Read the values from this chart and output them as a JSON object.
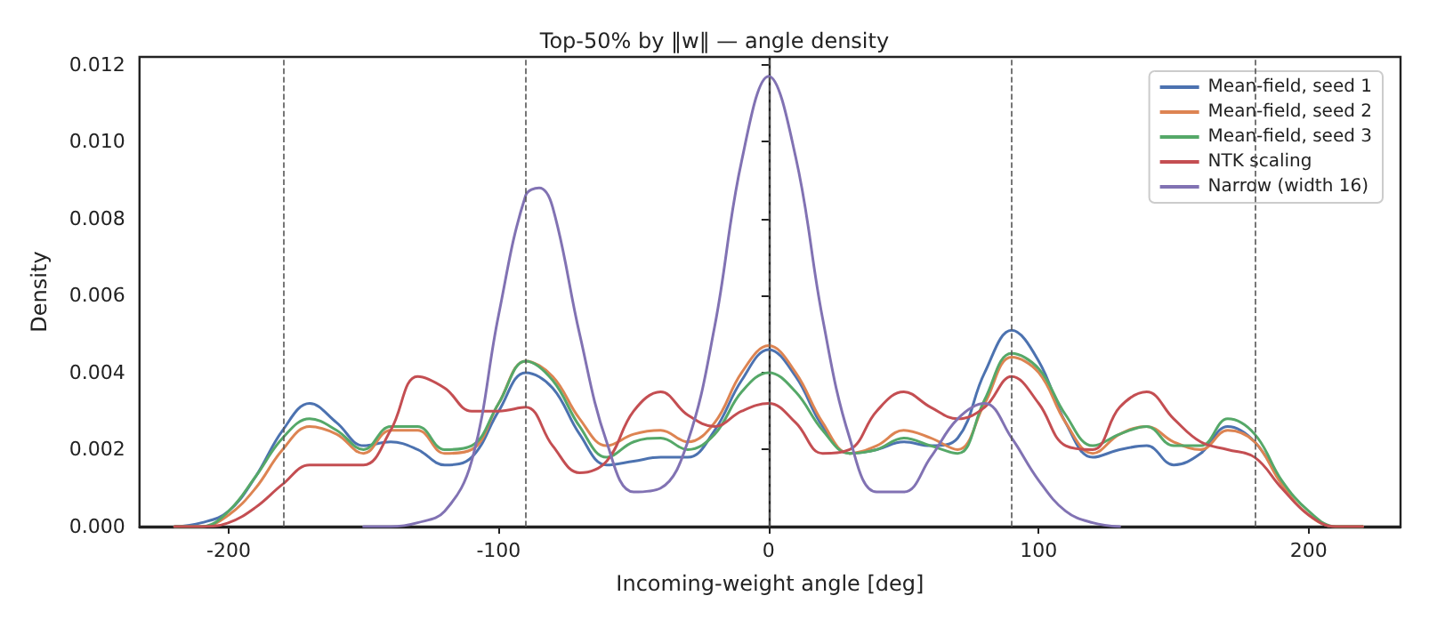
{
  "chart_data": {
    "type": "line",
    "title": "Top-50% by ‖w‖ — angle density",
    "xlabel": "Incoming-weight angle [deg]",
    "ylabel": "Density",
    "x": [
      -220,
      -210,
      -200,
      -190,
      -180,
      -170,
      -160,
      -150,
      -140,
      -130,
      -120,
      -110,
      -100,
      -90,
      -80,
      -70,
      -60,
      -50,
      -40,
      -30,
      -20,
      -10,
      0,
      10,
      20,
      30,
      40,
      50,
      60,
      70,
      80,
      90,
      100,
      110,
      120,
      130,
      140,
      150,
      160,
      170,
      180,
      190,
      200,
      210,
      220
    ],
    "series": [
      {
        "name": "Mean-field, seed 1",
        "color": "#4c72b0",
        "values": [
          0,
          0.0001,
          0.0004,
          0.0013,
          0.0025,
          0.0032,
          0.0027,
          0.0021,
          0.0022,
          0.002,
          0.0016,
          0.0018,
          0.003,
          0.004,
          0.0036,
          0.0024,
          0.0016,
          0.0017,
          0.0018,
          0.0018,
          0.0025,
          0.0038,
          0.0046,
          0.0039,
          0.0026,
          0.0019,
          0.002,
          0.0022,
          0.0021,
          0.0023,
          0.004,
          0.0051,
          0.0043,
          0.0027,
          0.0018,
          0.002,
          0.0021,
          0.0016,
          0.0019,
          0.0026,
          0.0022,
          0.0011,
          null,
          null,
          null
        ]
      },
      {
        "name": "Mean-field, seed 2",
        "color": "#dd8452",
        "values": [
          0,
          0,
          0.0003,
          0.001,
          0.002,
          0.0026,
          0.0024,
          0.0019,
          0.0025,
          0.0025,
          0.0019,
          0.002,
          0.0032,
          0.0043,
          0.0039,
          0.0028,
          0.0021,
          0.0024,
          0.0025,
          0.0022,
          0.0027,
          0.004,
          0.0047,
          0.004,
          0.0027,
          0.0019,
          0.0021,
          0.0025,
          0.0023,
          0.002,
          0.0032,
          0.0044,
          0.004,
          0.0027,
          0.0019,
          0.0024,
          0.0026,
          0.0022,
          0.002,
          0.0025,
          0.0022,
          0.0011,
          0.0003,
          0,
          0
        ]
      },
      {
        "name": "Mean-field, seed 3",
        "color": "#55a868",
        "values": [
          0,
          0,
          0.0004,
          0.0013,
          0.0023,
          0.0028,
          0.0025,
          0.002,
          0.0026,
          0.0026,
          0.002,
          0.0021,
          0.0032,
          0.0043,
          0.0038,
          0.0026,
          0.0018,
          0.0022,
          0.0023,
          0.002,
          0.0024,
          0.0035,
          0.004,
          0.0035,
          0.0025,
          0.0019,
          0.002,
          0.0023,
          0.0021,
          0.0019,
          0.0033,
          0.0045,
          0.0041,
          0.0029,
          0.0021,
          0.0024,
          0.0026,
          0.0021,
          0.0021,
          0.0028,
          0.0024,
          0.0012,
          0.0004,
          0,
          0
        ]
      },
      {
        "name": "NTK scaling",
        "color": "#c44e52",
        "values": [
          0,
          0,
          0.0001,
          0.0005,
          0.0011,
          0.0016,
          0.0016,
          0.0016,
          0.0025,
          0.0039,
          0.0036,
          0.003,
          0.003,
          0.0031,
          0.0021,
          0.0014,
          0.0017,
          0.003,
          0.0035,
          0.0029,
          0.0026,
          0.003,
          0.0032,
          0.0027,
          0.0019,
          0.002,
          0.003,
          0.0035,
          0.0031,
          0.0028,
          0.0031,
          0.0039,
          0.0032,
          0.0021,
          0.002,
          0.0031,
          0.0035,
          0.0028,
          0.0022,
          0.002,
          0.0018,
          0.001,
          0.0003,
          0,
          0
        ]
      },
      {
        "name": "Narrow (width 16)",
        "color": "#8172b3",
        "x": [
          -150,
          -140,
          -130,
          -120,
          -110,
          -100,
          -90,
          -85,
          -80,
          -70,
          -60,
          -50,
          -40,
          -30,
          -20,
          -10,
          0,
          10,
          20,
          30,
          40,
          50,
          60,
          70,
          80,
          90,
          100,
          110,
          120,
          130
        ],
        "values": [
          0,
          0,
          0.0001,
          0.0004,
          0.0017,
          0.0055,
          0.0086,
          0.0088,
          0.0083,
          0.005,
          0.0022,
          0.0009,
          0.001,
          0.0022,
          0.0052,
          0.0095,
          0.0117,
          0.0096,
          0.0054,
          0.0023,
          0.0009,
          0.0009,
          0.0018,
          0.0028,
          0.0032,
          0.0023,
          0.0012,
          0.0004,
          0.0001,
          0
        ]
      }
    ],
    "xlim": [
      -233,
      234
    ],
    "ylim": [
      0,
      0.0122
    ],
    "xticks": [
      -200,
      -100,
      0,
      100,
      200
    ],
    "yticks": [
      {
        "value": 0,
        "label": "0.000"
      },
      {
        "value": 0.002,
        "label": "0.002"
      },
      {
        "value": 0.004,
        "label": "0.004"
      },
      {
        "value": 0.006,
        "label": "0.006"
      },
      {
        "value": 0.008,
        "label": "0.008"
      },
      {
        "value": 0.01,
        "label": "0.010"
      },
      {
        "value": 0.012,
        "label": "0.012"
      }
    ],
    "ref_lines": [
      {
        "axis": "x",
        "value": -180,
        "color": "#555555",
        "line_style": "dashed"
      },
      {
        "axis": "x",
        "value": -90,
        "color": "#555555",
        "line_style": "dashed"
      },
      {
        "axis": "x",
        "value": 0,
        "color": "#555555",
        "line_style": "dashed"
      },
      {
        "axis": "x",
        "value": 90,
        "color": "#555555",
        "line_style": "dashed"
      },
      {
        "axis": "x",
        "value": 180,
        "color": "#555555",
        "line_style": "dashed"
      }
    ],
    "grid": false,
    "legend": "top right",
    "marker": "none",
    "line_style": "solid"
  }
}
